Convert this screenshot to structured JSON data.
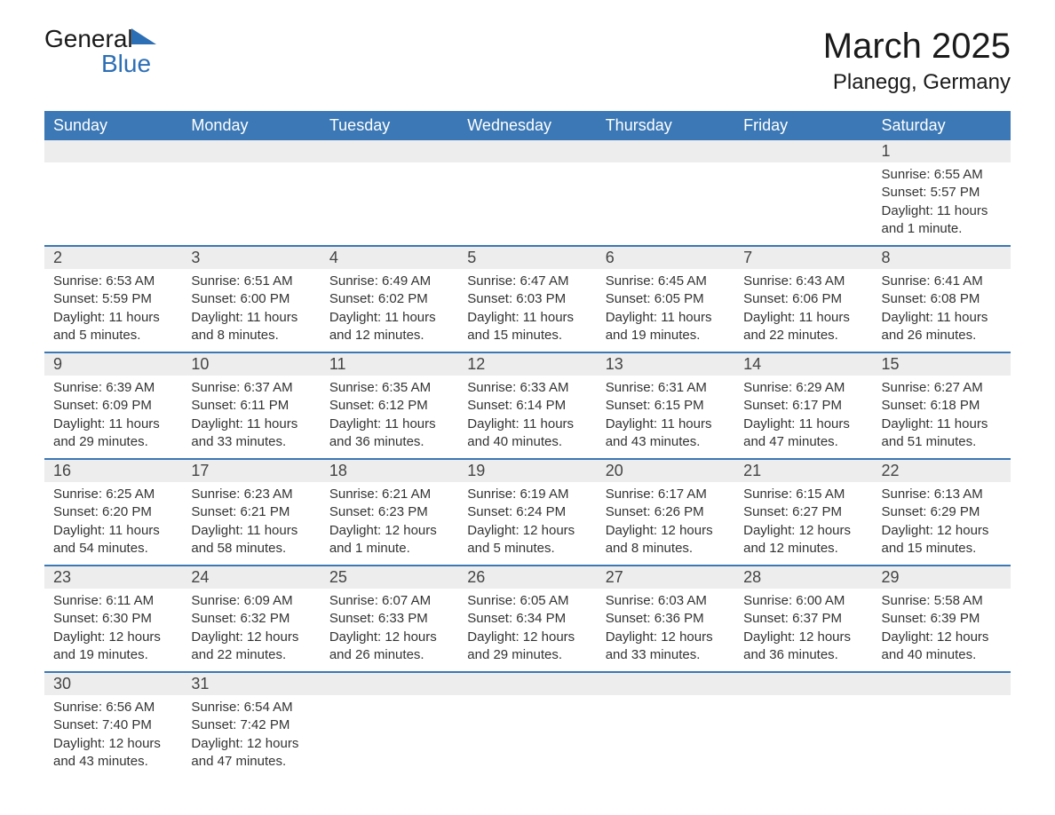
{
  "logo": {
    "word1": "General",
    "word2": "Blue"
  },
  "title": "March 2025",
  "location": "Planegg, Germany",
  "headers": [
    "Sunday",
    "Monday",
    "Tuesday",
    "Wednesday",
    "Thursday",
    "Friday",
    "Saturday"
  ],
  "colors": {
    "header_bg": "#3b78b5",
    "header_text": "#ffffff",
    "daynum_bg": "#ededed",
    "row_divider": "#3b78b5",
    "body_text": "#333333",
    "page_bg": "#ffffff",
    "logo_blue": "#2d6fb5"
  },
  "fonts": {
    "title_size_pt": 30,
    "location_size_pt": 18,
    "header_size_pt": 14,
    "daynum_size_pt": 14,
    "detail_size_pt": 11
  },
  "weeks": [
    {
      "nums": [
        "",
        "",
        "",
        "",
        "",
        "",
        "1"
      ],
      "details": [
        "",
        "",
        "",
        "",
        "",
        "",
        "Sunrise: 6:55 AM\nSunset: 5:57 PM\nDaylight: 11 hours and 1 minute."
      ]
    },
    {
      "nums": [
        "2",
        "3",
        "4",
        "5",
        "6",
        "7",
        "8"
      ],
      "details": [
        "Sunrise: 6:53 AM\nSunset: 5:59 PM\nDaylight: 11 hours and 5 minutes.",
        "Sunrise: 6:51 AM\nSunset: 6:00 PM\nDaylight: 11 hours and 8 minutes.",
        "Sunrise: 6:49 AM\nSunset: 6:02 PM\nDaylight: 11 hours and 12 minutes.",
        "Sunrise: 6:47 AM\nSunset: 6:03 PM\nDaylight: 11 hours and 15 minutes.",
        "Sunrise: 6:45 AM\nSunset: 6:05 PM\nDaylight: 11 hours and 19 minutes.",
        "Sunrise: 6:43 AM\nSunset: 6:06 PM\nDaylight: 11 hours and 22 minutes.",
        "Sunrise: 6:41 AM\nSunset: 6:08 PM\nDaylight: 11 hours and 26 minutes."
      ]
    },
    {
      "nums": [
        "9",
        "10",
        "11",
        "12",
        "13",
        "14",
        "15"
      ],
      "details": [
        "Sunrise: 6:39 AM\nSunset: 6:09 PM\nDaylight: 11 hours and 29 minutes.",
        "Sunrise: 6:37 AM\nSunset: 6:11 PM\nDaylight: 11 hours and 33 minutes.",
        "Sunrise: 6:35 AM\nSunset: 6:12 PM\nDaylight: 11 hours and 36 minutes.",
        "Sunrise: 6:33 AM\nSunset: 6:14 PM\nDaylight: 11 hours and 40 minutes.",
        "Sunrise: 6:31 AM\nSunset: 6:15 PM\nDaylight: 11 hours and 43 minutes.",
        "Sunrise: 6:29 AM\nSunset: 6:17 PM\nDaylight: 11 hours and 47 minutes.",
        "Sunrise: 6:27 AM\nSunset: 6:18 PM\nDaylight: 11 hours and 51 minutes."
      ]
    },
    {
      "nums": [
        "16",
        "17",
        "18",
        "19",
        "20",
        "21",
        "22"
      ],
      "details": [
        "Sunrise: 6:25 AM\nSunset: 6:20 PM\nDaylight: 11 hours and 54 minutes.",
        "Sunrise: 6:23 AM\nSunset: 6:21 PM\nDaylight: 11 hours and 58 minutes.",
        "Sunrise: 6:21 AM\nSunset: 6:23 PM\nDaylight: 12 hours and 1 minute.",
        "Sunrise: 6:19 AM\nSunset: 6:24 PM\nDaylight: 12 hours and 5 minutes.",
        "Sunrise: 6:17 AM\nSunset: 6:26 PM\nDaylight: 12 hours and 8 minutes.",
        "Sunrise: 6:15 AM\nSunset: 6:27 PM\nDaylight: 12 hours and 12 minutes.",
        "Sunrise: 6:13 AM\nSunset: 6:29 PM\nDaylight: 12 hours and 15 minutes."
      ]
    },
    {
      "nums": [
        "23",
        "24",
        "25",
        "26",
        "27",
        "28",
        "29"
      ],
      "details": [
        "Sunrise: 6:11 AM\nSunset: 6:30 PM\nDaylight: 12 hours and 19 minutes.",
        "Sunrise: 6:09 AM\nSunset: 6:32 PM\nDaylight: 12 hours and 22 minutes.",
        "Sunrise: 6:07 AM\nSunset: 6:33 PM\nDaylight: 12 hours and 26 minutes.",
        "Sunrise: 6:05 AM\nSunset: 6:34 PM\nDaylight: 12 hours and 29 minutes.",
        "Sunrise: 6:03 AM\nSunset: 6:36 PM\nDaylight: 12 hours and 33 minutes.",
        "Sunrise: 6:00 AM\nSunset: 6:37 PM\nDaylight: 12 hours and 36 minutes.",
        "Sunrise: 5:58 AM\nSunset: 6:39 PM\nDaylight: 12 hours and 40 minutes."
      ]
    },
    {
      "nums": [
        "30",
        "31",
        "",
        "",
        "",
        "",
        ""
      ],
      "details": [
        "Sunrise: 6:56 AM\nSunset: 7:40 PM\nDaylight: 12 hours and 43 minutes.",
        "Sunrise: 6:54 AM\nSunset: 7:42 PM\nDaylight: 12 hours and 47 minutes.",
        "",
        "",
        "",
        "",
        ""
      ]
    }
  ]
}
